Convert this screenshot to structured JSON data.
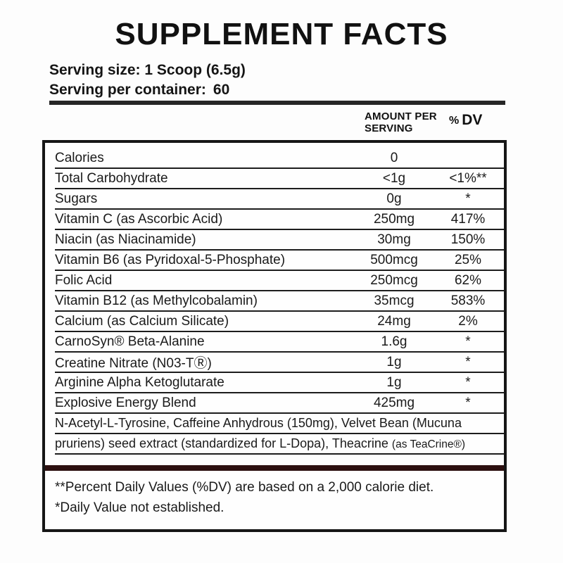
{
  "title": "SUPPLEMENT FACTS",
  "serving": {
    "size": "Serving size: 1 Scoop (6.5g)",
    "container_label": "Serving per container:",
    "container_value": "60"
  },
  "table": {
    "headers": {
      "amount_line1": "AMOUNT PER",
      "amount_line2": "SERVING",
      "dv_percent": "%",
      "dv_label": "DV"
    },
    "rows": [
      {
        "name": "Calories",
        "amount": "0",
        "dv": ""
      },
      {
        "name": "Total Carbohydrate",
        "amount": "<1g",
        "dv": "<1%**"
      },
      {
        "name": "Sugars",
        "amount": "0g",
        "dv": "*"
      },
      {
        "name": "Vitamin C (as Ascorbic Acid)",
        "amount": "250mg",
        "dv": "417%"
      },
      {
        "name": "Niacin (as Niacinamide)",
        "amount": "30mg",
        "dv": "150%"
      },
      {
        "name": "Vitamin B6 (as Pyridoxal-5-Phosphate)",
        "amount": "500mcg",
        "dv": "25%"
      },
      {
        "name": "Folic Acid",
        "amount": "250mcg",
        "dv": "62%"
      },
      {
        "name": "Vitamin B12 (as Methylcobalamin)",
        "amount": "35mcg",
        "dv": "583%"
      },
      {
        "name": "Calcium (as Calcium Silicate)",
        "amount": "24mg",
        "dv": "2%"
      },
      {
        "name": "CarnoSyn® Beta-Alanine",
        "amount": "1.6g",
        "dv": "*"
      },
      {
        "name": "Creatine Nitrate (N03-TⓇ)",
        "amount": "1g",
        "dv": "*"
      },
      {
        "name": "Arginine Alpha Ketoglutarate",
        "amount": "1g",
        "dv": "*"
      },
      {
        "name": "Explosive Energy Blend",
        "amount": "425mg",
        "dv": "*"
      }
    ],
    "blend": {
      "line1": "N-Acetyl-L-Tyrosine, Caffeine Anhydrous (150mg), Velvet Bean (Mucuna",
      "line2_main": "pruriens) seed extract (standardized for L-Dopa), Theacrine ",
      "line2_small": "(as TeaCrine®)"
    }
  },
  "footnotes": [
    "**Percent Daily Values (%DV) are based on a 2,000 calorie diet.",
    "*Daily Value not established."
  ],
  "colors": {
    "divider_bar": "#2d1010",
    "border": "#161616",
    "text": "#1a1a1a"
  }
}
